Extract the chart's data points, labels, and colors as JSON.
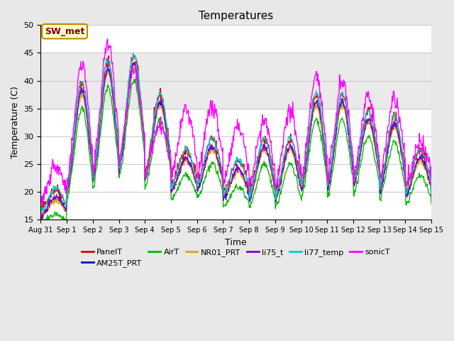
{
  "title": "Temperatures",
  "xlabel": "Time",
  "ylabel": "Temperature (C)",
  "ylim": [
    15,
    50
  ],
  "xlim_days": [
    0,
    15
  ],
  "fig_bg_color": "#e8e8e8",
  "plot_bg_color": "#ffffff",
  "grid_color": "#cccccc",
  "series": {
    "PanelT": {
      "color": "#dd0000",
      "lw": 1.0
    },
    "AM25T_PRT": {
      "color": "#0000cc",
      "lw": 1.0
    },
    "AirT": {
      "color": "#00bb00",
      "lw": 1.0
    },
    "NR01_PRT": {
      "color": "#ddaa00",
      "lw": 1.0
    },
    "li75_t": {
      "color": "#8800cc",
      "lw": 1.0
    },
    "li77_temp": {
      "color": "#00cccc",
      "lw": 1.0
    },
    "sonicT": {
      "color": "#ff00ff",
      "lw": 1.0
    }
  },
  "tick_labels": [
    "Aug 31",
    "Sep 1",
    "Sep 2",
    "Sep 3",
    "Sep 4",
    "Sep 5",
    "Sep 6",
    "Sep 7",
    "Sep 8",
    "Sep 9",
    "Sep 10",
    "Sep 11",
    "Sep 12",
    "Sep 13",
    "Sep 14",
    "Sep 15"
  ],
  "tick_positions": [
    0,
    1,
    2,
    3,
    4,
    5,
    6,
    7,
    8,
    9,
    10,
    11,
    12,
    13,
    14,
    15
  ],
  "yticks": [
    15,
    20,
    25,
    30,
    35,
    40,
    45,
    50
  ],
  "box_label": "SW_met",
  "box_facecolor": "#ffffcc",
  "box_edgecolor": "#bb8800",
  "box_textcolor": "#880000",
  "shaded_bands": [
    {
      "ymin": 35,
      "ymax": 45,
      "color": "#dddddd",
      "alpha": 0.6
    }
  ]
}
